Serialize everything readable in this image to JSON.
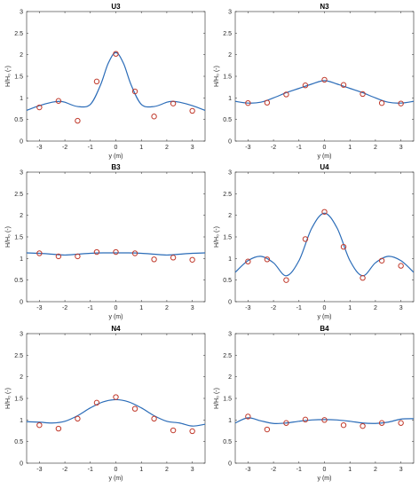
{
  "figure": {
    "colors": {
      "line": "#2b6cb8",
      "marker": "#c0392b",
      "axis": "#262626"
    }
  },
  "chart_data": [
    {
      "type": "line",
      "title": "U3",
      "xlabel": "y (m)",
      "ylabel": "H/H₀ (-)",
      "xlim": [
        -3.5,
        3.5
      ],
      "ylim": [
        0,
        3
      ],
      "xticks": [
        -3,
        -2,
        -1,
        0,
        1,
        2,
        3
      ],
      "yticks": [
        0,
        0.5,
        1,
        1.5,
        2,
        2.5,
        3
      ],
      "series": [
        {
          "kind": "line",
          "x": [
            -3.5,
            -3,
            -2.5,
            -2.2,
            -2,
            -1.5,
            -1,
            -0.6,
            -0.3,
            0,
            0.3,
            0.6,
            1,
            1.5,
            2,
            2.2,
            2.5,
            3,
            3.5
          ],
          "y": [
            0.71,
            0.82,
            0.9,
            0.92,
            0.9,
            0.8,
            0.85,
            1.3,
            1.8,
            2.05,
            1.8,
            1.3,
            0.85,
            0.8,
            0.9,
            0.92,
            0.9,
            0.82,
            0.71
          ]
        },
        {
          "kind": "points",
          "x": [
            -3,
            -2.25,
            -1.5,
            -0.75,
            0,
            0.75,
            1.5,
            2.25,
            3
          ],
          "y": [
            0.78,
            0.93,
            0.47,
            1.38,
            2.02,
            1.15,
            0.57,
            0.87,
            0.7
          ]
        }
      ]
    },
    {
      "type": "line",
      "title": "N3",
      "xlabel": "y (m)",
      "ylabel": "H/H₀ (-)",
      "xlim": [
        -3.5,
        3.5
      ],
      "ylim": [
        0,
        3
      ],
      "xticks": [
        -3,
        -2,
        -1,
        0,
        1,
        2,
        3
      ],
      "yticks": [
        0,
        0.5,
        1,
        1.5,
        2,
        2.5,
        3
      ],
      "series": [
        {
          "kind": "line",
          "x": [
            -3.5,
            -3,
            -2.5,
            -2,
            -1.5,
            -1,
            -0.5,
            0,
            0.5,
            1,
            1.5,
            2,
            2.5,
            3,
            3.5
          ],
          "y": [
            0.92,
            0.88,
            0.9,
            1.0,
            1.12,
            1.22,
            1.32,
            1.4,
            1.32,
            1.22,
            1.12,
            1.0,
            0.9,
            0.88,
            0.92
          ]
        },
        {
          "kind": "points",
          "x": [
            -3,
            -2.25,
            -1.5,
            -0.75,
            0,
            0.75,
            1.5,
            2.25,
            3
          ],
          "y": [
            0.88,
            0.89,
            1.08,
            1.29,
            1.42,
            1.3,
            1.09,
            0.88,
            0.87
          ]
        }
      ]
    },
    {
      "type": "line",
      "title": "B3",
      "xlabel": "y (m)",
      "ylabel": "H/H₀ (-)",
      "xlim": [
        -3.5,
        3.5
      ],
      "ylim": [
        0,
        3
      ],
      "xticks": [
        -3,
        -2,
        -1,
        0,
        1,
        2,
        3
      ],
      "yticks": [
        0,
        0.5,
        1,
        1.5,
        2,
        2.5,
        3
      ],
      "series": [
        {
          "kind": "line",
          "x": [
            -3.5,
            -3,
            -2.5,
            -2,
            -1.5,
            -1,
            -0.5,
            0,
            0.5,
            1,
            1.5,
            2,
            2.5,
            3,
            3.5
          ],
          "y": [
            1.13,
            1.12,
            1.1,
            1.08,
            1.1,
            1.12,
            1.13,
            1.13,
            1.13,
            1.12,
            1.1,
            1.08,
            1.1,
            1.12,
            1.13
          ]
        },
        {
          "kind": "points",
          "x": [
            -3,
            -2.25,
            -1.5,
            -0.75,
            0,
            0.75,
            1.5,
            2.25,
            3
          ],
          "y": [
            1.12,
            1.05,
            1.05,
            1.15,
            1.15,
            1.12,
            0.98,
            1.02,
            0.97
          ]
        }
      ]
    },
    {
      "type": "line",
      "title": "U4",
      "xlabel": "y (m)",
      "ylabel": "H/H₀ (-)",
      "xlim": [
        -3.5,
        3.5
      ],
      "ylim": [
        0,
        3
      ],
      "xticks": [
        -3,
        -2,
        -1,
        0,
        1,
        2,
        3
      ],
      "yticks": [
        0,
        0.5,
        1,
        1.5,
        2,
        2.5,
        3
      ],
      "series": [
        {
          "kind": "line",
          "x": [
            -3.5,
            -3,
            -2.5,
            -2,
            -1.5,
            -1,
            -0.5,
            0,
            0.5,
            1,
            1.5,
            2,
            2.5,
            3,
            3.5
          ],
          "y": [
            0.68,
            0.95,
            1.05,
            0.9,
            0.6,
            0.95,
            1.7,
            2.05,
            1.7,
            0.95,
            0.6,
            0.9,
            1.05,
            0.95,
            0.68
          ]
        },
        {
          "kind": "points",
          "x": [
            -3,
            -2.25,
            -1.5,
            -0.75,
            0,
            0.75,
            1.5,
            2.25,
            3
          ],
          "y": [
            0.93,
            0.98,
            0.5,
            1.45,
            2.08,
            1.27,
            0.55,
            0.95,
            0.83
          ]
        }
      ]
    },
    {
      "type": "line",
      "title": "N4",
      "xlabel": "y (m)",
      "ylabel": "H/H₀ (-)",
      "xlim": [
        -3.5,
        3.5
      ],
      "ylim": [
        0,
        3
      ],
      "xticks": [
        -3,
        -2,
        -1,
        0,
        1,
        2,
        3
      ],
      "yticks": [
        0,
        0.5,
        1,
        1.5,
        2,
        2.5,
        3
      ],
      "series": [
        {
          "kind": "line",
          "x": [
            -3.5,
            -3,
            -2.5,
            -2,
            -1.5,
            -1,
            -0.5,
            0,
            0.5,
            1,
            1.5,
            2,
            2.5,
            3,
            3.5
          ],
          "y": [
            0.96,
            0.95,
            0.93,
            0.97,
            1.1,
            1.28,
            1.42,
            1.47,
            1.42,
            1.28,
            1.1,
            0.97,
            0.93,
            0.86,
            0.9
          ]
        },
        {
          "kind": "points",
          "x": [
            -3,
            -2.25,
            -1.5,
            -0.75,
            0,
            0.75,
            1.5,
            2.25,
            3
          ],
          "y": [
            0.88,
            0.8,
            1.03,
            1.4,
            1.53,
            1.26,
            1.03,
            0.76,
            0.74
          ]
        }
      ]
    },
    {
      "type": "line",
      "title": "B4",
      "xlabel": "y (m)",
      "ylabel": "H/H₀ (-)",
      "xlim": [
        -3.5,
        3.5
      ],
      "ylim": [
        0,
        3
      ],
      "xticks": [
        -3,
        -2,
        -1,
        0,
        1,
        2,
        3
      ],
      "yticks": [
        0,
        0.5,
        1,
        1.5,
        2,
        2.5,
        3
      ],
      "series": [
        {
          "kind": "line",
          "x": [
            -3.5,
            -3,
            -2.5,
            -2,
            -1.5,
            -1,
            -0.5,
            0,
            0.5,
            1,
            1.5,
            2,
            2.5,
            3,
            3.5
          ],
          "y": [
            0.93,
            1.05,
            0.98,
            0.92,
            0.93,
            0.97,
            1.0,
            1.01,
            1.0,
            0.97,
            0.93,
            0.92,
            0.95,
            1.02,
            1.03
          ]
        },
        {
          "kind": "points",
          "x": [
            -3,
            -2.25,
            -1.5,
            -0.75,
            0,
            0.75,
            1.5,
            2.25,
            3
          ],
          "y": [
            1.08,
            0.78,
            0.93,
            1.01,
            1.0,
            0.88,
            0.86,
            0.93,
            0.93
          ]
        }
      ]
    }
  ]
}
